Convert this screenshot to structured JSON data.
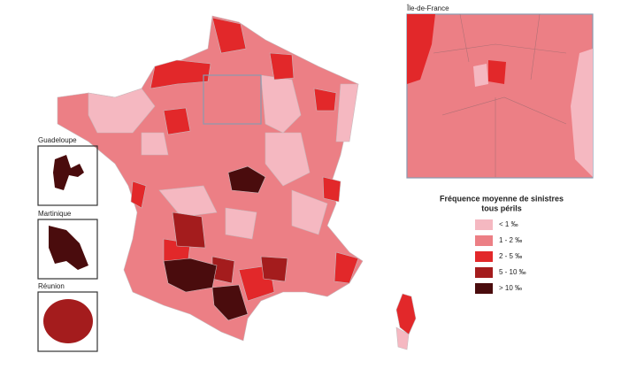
{
  "inset": {
    "title": "Île-de-France"
  },
  "overseas": [
    {
      "label": "Guadeloupe"
    },
    {
      "label": "Martinique"
    },
    {
      "label": "Réunion"
    }
  ],
  "legend": {
    "title": [
      "Fréquence moyenne de sinistres",
      "tous périls"
    ],
    "items": [
      {
        "label": "< 1 ‰",
        "color": "#f5b8c1"
      },
      {
        "label": "1 - 2 ‰",
        "color": "#ec7f85"
      },
      {
        "label": "2 - 5 ‰",
        "color": "#e2282a"
      },
      {
        "label": "5 - 10 ‰",
        "color": "#a41c1d"
      },
      {
        "label": "> 10 ‰",
        "color": "#4a0c0d"
      }
    ]
  }
}
